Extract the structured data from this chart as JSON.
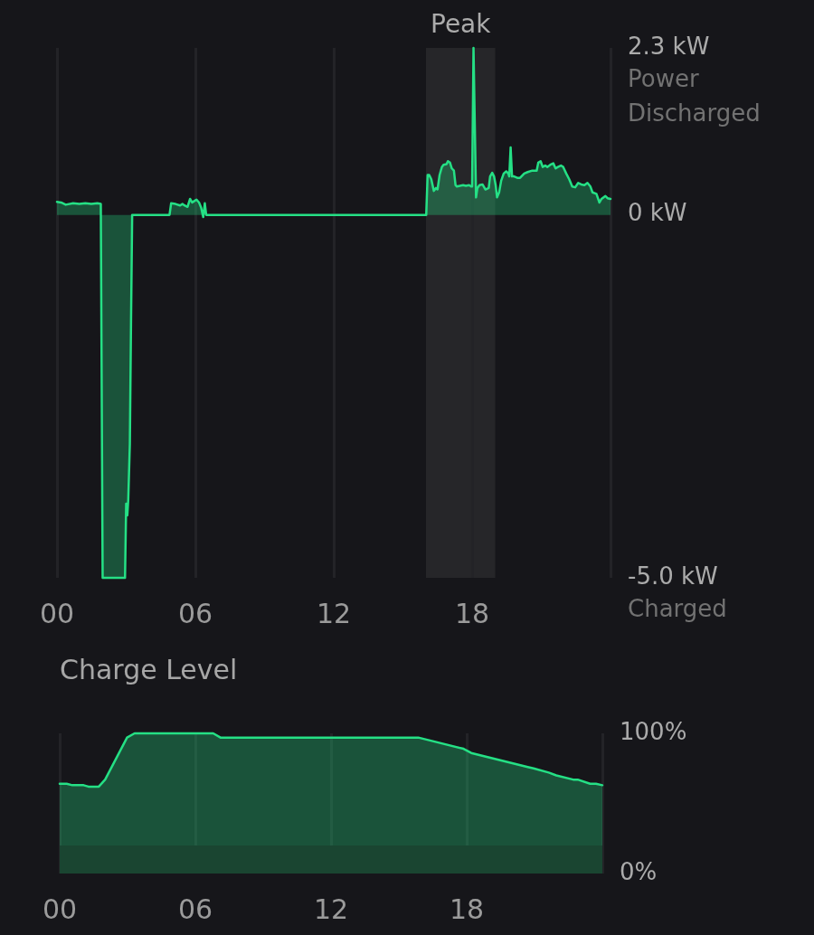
{
  "chart_data": [
    {
      "type": "area",
      "x": [
        0,
        0.18,
        0.38,
        0.7,
        0.97,
        1.23,
        1.49,
        1.75,
        1.9,
        1.98,
        2.14,
        2.5,
        2.95,
        3.0,
        3.05,
        3.09,
        3.16,
        3.21,
        3.26,
        4.88,
        4.95,
        5.14,
        5.34,
        5.44,
        5.53,
        5.66,
        5.77,
        5.86,
        5.95,
        6.05,
        6.16,
        6.25,
        6.34,
        6.41,
        6.47,
        6.58,
        16.01,
        16.07,
        16.14,
        16.23,
        16.34,
        16.43,
        16.5,
        16.59,
        16.69,
        16.76,
        16.89,
        16.95,
        17.04,
        17.12,
        17.21,
        17.28,
        17.34,
        17.47,
        17.61,
        17.73,
        17.87,
        17.96,
        18.0,
        18.06,
        18.17,
        18.23,
        18.32,
        18.45,
        18.58,
        18.72,
        18.78,
        18.87,
        18.95,
        19.02,
        19.08,
        19.17,
        19.26,
        19.37,
        19.48,
        19.57,
        19.61,
        19.67,
        19.73,
        19.82,
        19.96,
        20.08,
        20.26,
        20.41,
        20.61,
        20.8,
        20.87,
        20.97,
        21.06,
        21.17,
        21.26,
        21.39,
        21.52,
        21.62,
        21.72,
        21.85,
        21.95,
        22.08,
        22.21,
        22.34,
        22.47,
        22.6,
        22.73,
        22.87,
        23.0,
        23.13,
        23.22,
        23.39,
        23.52,
        23.61,
        23.78,
        23.87,
        24.0
      ],
      "series": [
        {
          "color": "#25e085",
          "values": [
            0.18,
            0.17,
            0.14,
            0.16,
            0.15,
            0.16,
            0.15,
            0.16,
            0.15,
            -5.0,
            -5.0,
            -5.0,
            -5.0,
            -3.98,
            -4.14,
            -3.93,
            -3.15,
            -1.5,
            0,
            0,
            0.16,
            0.15,
            0.13,
            0.15,
            0.13,
            0.11,
            0.22,
            0.17,
            0.19,
            0.21,
            0.17,
            0.1,
            -0.03,
            0.16,
            0,
            0,
            0,
            0.55,
            0.55,
            0.49,
            0.33,
            0.37,
            0.35,
            0.55,
            0.66,
            0.69,
            0.7,
            0.74,
            0.72,
            0.64,
            0.61,
            0.41,
            0.39,
            0.4,
            0.41,
            0.4,
            0.41,
            0.39,
            0.39,
            2.3,
            0.24,
            0.37,
            0.41,
            0.42,
            0.35,
            0.37,
            0.53,
            0.58,
            0.53,
            0.41,
            0.24,
            0.31,
            0.47,
            0.57,
            0.6,
            0.57,
            0.53,
            0.93,
            0.53,
            0.53,
            0.51,
            0.51,
            0.57,
            0.59,
            0.61,
            0.61,
            0.72,
            0.74,
            0.66,
            0.68,
            0.66,
            0.69,
            0.71,
            0.64,
            0.66,
            0.68,
            0.66,
            0.57,
            0.49,
            0.39,
            0.38,
            0.44,
            0.42,
            0.41,
            0.44,
            0.39,
            0.31,
            0.29,
            0.17,
            0.22,
            0.26,
            0.23,
            0.22
          ]
        }
      ],
      "xlim": [
        0,
        24
      ],
      "xticks": [
        {
          "value": 0,
          "label": "00"
        },
        {
          "value": 6,
          "label": "06"
        },
        {
          "value": 12,
          "label": "12"
        },
        {
          "value": 18,
          "label": "18"
        },
        {
          "value": 24,
          "label": null
        }
      ],
      "ylim": [
        -5,
        2.3
      ],
      "yticks": [
        {
          "value": -5,
          "label": "-5.0 kW"
        },
        {
          "value": 0,
          "label": "0 kW"
        },
        {
          "value": 2.3,
          "label": "2.3 kW"
        }
      ],
      "bands": [
        {
          "axis": "x",
          "from": 16,
          "to": 19,
          "label": "Peak",
          "color": "#262629"
        }
      ],
      "annotations": [
        "Power Discharged",
        "Charged"
      ],
      "grid": "x"
    },
    {
      "type": "area",
      "title": "Charge Level",
      "x": [
        0,
        0.31,
        0.56,
        1.06,
        1.27,
        1.73,
        2.01,
        2.98,
        3.31,
        6.79,
        7.11,
        15.86,
        17.86,
        18.2,
        20.7,
        20.96,
        21.63,
        21.96,
        22.71,
        22.91,
        23.46,
        23.72,
        24
      ],
      "series": [
        {
          "color": "#25e085",
          "values": [
            64,
            64,
            63,
            63,
            62,
            62,
            67,
            97,
            100,
            100,
            97,
            97,
            89,
            86,
            76,
            75,
            72,
            70,
            67,
            67,
            64,
            64,
            63
          ]
        }
      ],
      "xlim": [
        0,
        24
      ],
      "xticks": [
        {
          "value": 0,
          "label": "00"
        },
        {
          "value": 6,
          "label": "06"
        },
        {
          "value": 12,
          "label": "12"
        },
        {
          "value": 18,
          "label": "18"
        },
        {
          "value": 24,
          "label": null
        }
      ],
      "ylim": [
        0,
        100
      ],
      "yticks": [
        {
          "value": 0,
          "label": "0%"
        },
        {
          "value": 100,
          "label": "100%"
        }
      ],
      "bands": [
        {
          "axis": "y",
          "from": 0,
          "to": 20,
          "color": "#1a4531"
        }
      ],
      "grid": "x"
    }
  ]
}
